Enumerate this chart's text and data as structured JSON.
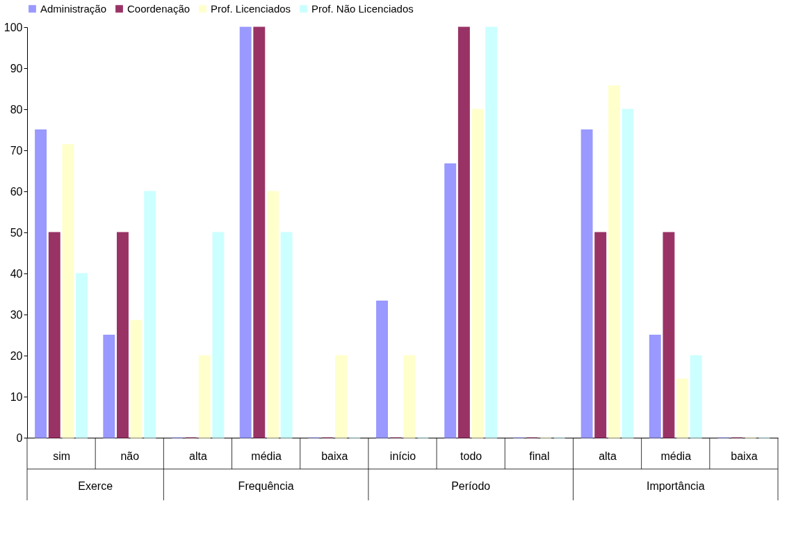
{
  "chart_data": {
    "type": "bar",
    "categories": [
      "sim",
      "não",
      "alta",
      "média",
      "baixa",
      "início",
      "todo",
      "final",
      "alta",
      "média",
      "baixa"
    ],
    "series": [
      {
        "name": "Administração",
        "color": "#9999ff",
        "values": [
          75,
          25,
          0,
          100,
          0,
          33.3,
          66.7,
          0,
          75,
          25,
          0
        ]
      },
      {
        "name": "Coordenação",
        "color": "#993366",
        "values": [
          50,
          50,
          0,
          100,
          0,
          0,
          100,
          0,
          50,
          50,
          0
        ]
      },
      {
        "name": "Prof. Licenciados",
        "color": "#ffffcc",
        "values": [
          71.4,
          28.6,
          20,
          60,
          20,
          20,
          80,
          0,
          85.7,
          14.3,
          0
        ]
      },
      {
        "name": "Prof. Não Licenciados",
        "color": "#ccffff",
        "values": [
          40,
          60,
          50,
          50,
          0,
          0,
          100,
          0,
          80,
          20,
          0
        ]
      }
    ],
    "annotations": [
      "Exerce",
      "Frequência",
      "Período",
      "Importância"
    ],
    "ylim": [
      0,
      100
    ],
    "yticks": [
      0,
      10,
      20,
      30,
      40,
      50,
      60,
      70,
      80,
      90,
      100
    ],
    "grid": false,
    "legend": "top"
  }
}
